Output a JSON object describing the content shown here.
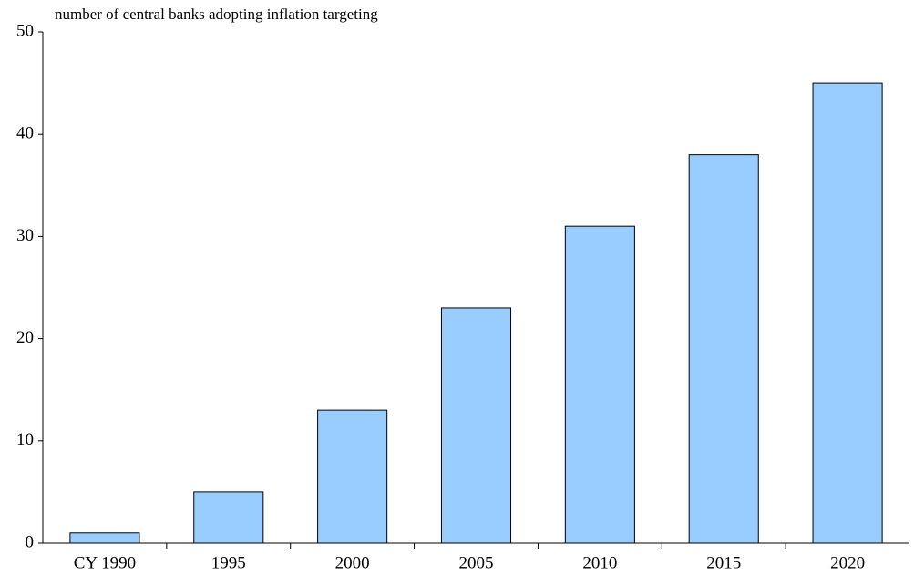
{
  "chart_data": {
    "type": "bar",
    "title": "number of central banks adopting inflation targeting",
    "categories": [
      "CY 1990",
      "1995",
      "2000",
      "2005",
      "2010",
      "2015",
      "2020"
    ],
    "values": [
      1,
      5,
      13,
      23,
      31,
      38,
      45
    ],
    "color": "#99ccff",
    "ylim": [
      0,
      50
    ],
    "yticks": [
      0,
      10,
      20,
      30,
      40,
      50
    ],
    "grid": false
  }
}
